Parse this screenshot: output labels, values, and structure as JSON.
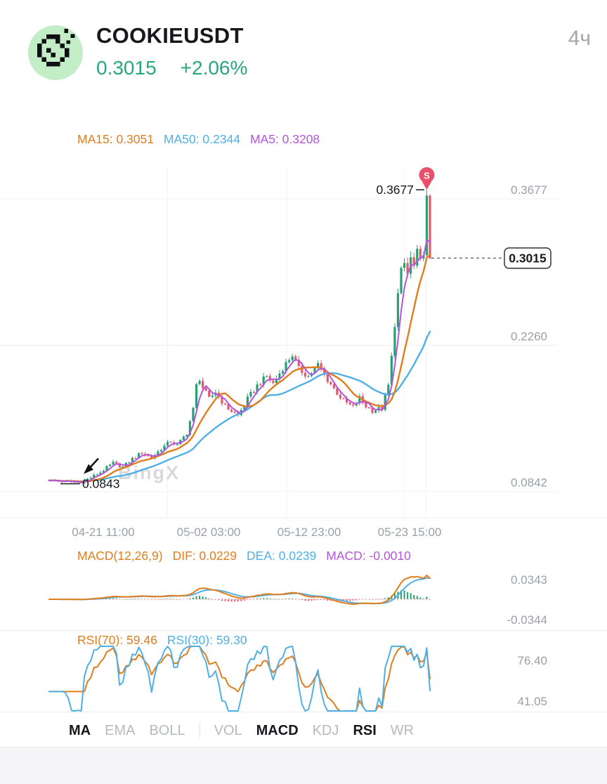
{
  "header": {
    "symbol": "COOKIEUSDT",
    "price": "0.3015",
    "change": "+2.06%",
    "interval": "4ч"
  },
  "colors": {
    "up": "#27a173",
    "down": "#e4586d",
    "ma5": "#b455dd",
    "ma15": "#e07d1d",
    "ma50": "#4fb0e5",
    "green_text": "#28a87f",
    "axis": "#9aa0a6",
    "grid": "#f0f1f4",
    "marker": "#e8506b",
    "watermark": "#d9d9d9",
    "dark": "#15181d",
    "zero_line": "#f29aa6"
  },
  "main_chart": {
    "ma_legend": [
      {
        "label": "MA15:",
        "value": "0.3051",
        "color": "#e07d1d"
      },
      {
        "label": "MA50:",
        "value": "0.2344",
        "color": "#4fb0e5"
      },
      {
        "label": "MA5:",
        "value": "0.3208",
        "color": "#b455dd"
      }
    ],
    "y_axis_labels": [
      {
        "text": "0.3677",
        "price": 0.3677
      },
      {
        "text": "0.2260",
        "price": 0.226
      },
      {
        "text": "0.0842",
        "price": 0.0842
      }
    ],
    "x_axis_labels": [
      "04-21 11:00",
      "05-02 03:00",
      "05-12 23:00",
      "05-23 15:00"
    ],
    "high_annotation": {
      "text": "0.3677",
      "price": 0.3677
    },
    "low_annotation": {
      "text": "0.0843",
      "price": 0.0843
    },
    "last_price_tag": {
      "text": "0.3015",
      "price": 0.3015
    },
    "sell_marker_label": "S",
    "watermark": "BingX"
  },
  "macd_panel": {
    "legend": [
      {
        "label": "MACD(12,26,9)",
        "value": "",
        "color": "#e07d1d"
      },
      {
        "label": "DIF:",
        "value": "0.0229",
        "color": "#e07d1d"
      },
      {
        "label": "DEA:",
        "value": "0.0239",
        "color": "#4fb0e5"
      },
      {
        "label": "MACD:",
        "value": "-0.0010",
        "color": "#b455dd"
      }
    ],
    "y_labels": [
      "0.0343",
      "-0.0344"
    ]
  },
  "rsi_panel": {
    "legend": [
      {
        "label": "RSI(70):",
        "value": "59.46",
        "color": "#e07d1d"
      },
      {
        "label": "RSI(30):",
        "value": "59.30",
        "color": "#4fb0e5"
      }
    ],
    "y_labels": [
      "76.40",
      "41.05"
    ]
  },
  "tabs": [
    {
      "label": "MA",
      "active": true
    },
    {
      "label": "EMA",
      "active": false
    },
    {
      "label": "BOLL",
      "active": false
    },
    {
      "divider": true
    },
    {
      "label": "VOL",
      "active": false
    },
    {
      "label": "MACD",
      "active": true
    },
    {
      "label": "KDJ",
      "active": false
    },
    {
      "label": "RSI",
      "active": true
    },
    {
      "label": "WR",
      "active": false
    }
  ],
  "chart_data": {
    "type": "candlestick",
    "symbol": "COOKIEUSDT",
    "interval": "4h",
    "price_range": [
      0.05,
      0.395
    ],
    "n_candles": 120,
    "close_anchors": [
      [
        0,
        0.086
      ],
      [
        4,
        0.0852
      ],
      [
        8,
        0.0846
      ],
      [
        10,
        0.0847
      ],
      [
        13,
        0.089
      ],
      [
        16,
        0.094
      ],
      [
        20,
        0.103
      ],
      [
        23,
        0.099
      ],
      [
        26,
        0.107
      ],
      [
        29,
        0.113
      ],
      [
        32,
        0.108
      ],
      [
        35,
        0.117
      ],
      [
        38,
        0.124
      ],
      [
        40,
        0.12
      ],
      [
        43,
        0.132
      ],
      [
        45,
        0.155
      ],
      [
        46,
        0.178
      ],
      [
        47,
        0.185
      ],
      [
        48,
        0.176
      ],
      [
        50,
        0.165
      ],
      [
        52,
        0.172
      ],
      [
        55,
        0.158
      ],
      [
        59,
        0.149
      ],
      [
        62,
        0.165
      ],
      [
        65,
        0.178
      ],
      [
        68,
        0.187
      ],
      [
        70,
        0.18
      ],
      [
        73,
        0.195
      ],
      [
        76,
        0.208
      ],
      [
        78,
        0.194
      ],
      [
        81,
        0.187
      ],
      [
        84,
        0.198
      ],
      [
        86,
        0.188
      ],
      [
        89,
        0.175
      ],
      [
        92,
        0.163
      ],
      [
        95,
        0.157
      ],
      [
        97,
        0.166
      ],
      [
        99,
        0.158
      ],
      [
        101,
        0.154
      ],
      [
        104,
        0.156
      ],
      [
        106,
        0.178
      ],
      [
        107,
        0.205
      ],
      [
        108,
        0.238
      ],
      [
        109,
        0.266
      ],
      [
        110,
        0.288
      ],
      [
        111,
        0.296
      ],
      [
        112,
        0.286
      ],
      [
        113,
        0.301
      ],
      [
        114,
        0.293
      ],
      [
        115,
        0.306
      ],
      [
        116,
        0.297
      ],
      [
        117,
        0.309
      ],
      [
        118,
        0.362
      ],
      [
        119,
        0.3015
      ]
    ],
    "extremes": {
      "high_index": 118,
      "high": 0.3677,
      "low_index": 10,
      "low": 0.0843
    },
    "last_close": 0.3015,
    "x_ticks": [
      "04-21 11:00",
      "05-02 03:00",
      "05-12 23:00",
      "05-23 15:00"
    ],
    "y_ticks": [
      0.3677,
      0.226,
      0.0842
    ],
    "ma": {
      "ma5": 0.3208,
      "ma15": 0.3051,
      "ma50": 0.2344
    },
    "macd": {
      "params": "(12,26,9)",
      "dif": 0.0229,
      "dea": 0.0239,
      "hist": -0.001,
      "y_ticks": [
        0.0343,
        -0.0344
      ]
    },
    "rsi": {
      "rsi70": 59.46,
      "rsi30": 59.3,
      "y_ticks": [
        76.4,
        41.05
      ]
    }
  }
}
